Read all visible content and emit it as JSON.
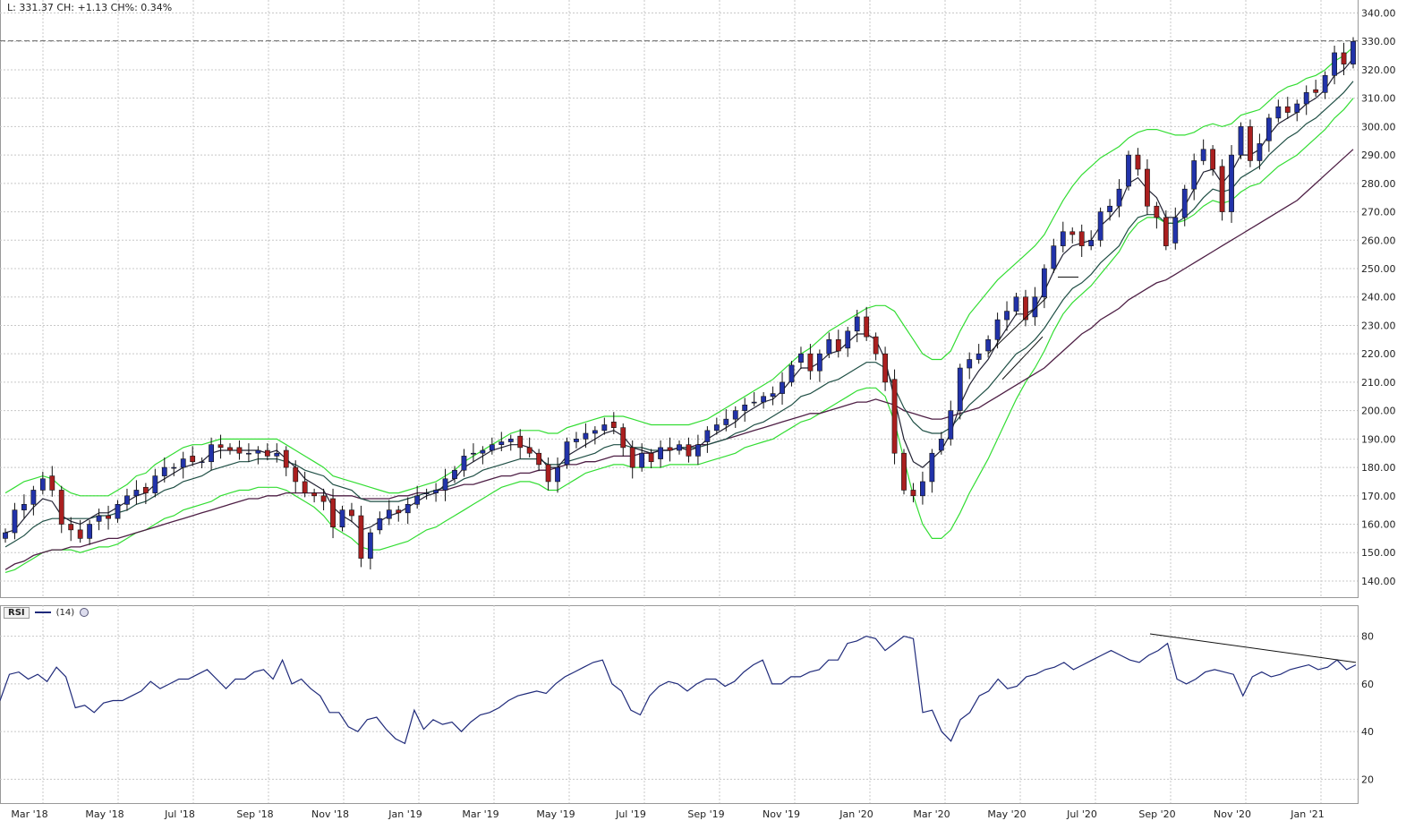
{
  "status": "L: 331.37 CH: +1.13 CH%: 0.34%",
  "rsi_label": "RSI",
  "rsi_period": "(14)",
  "chart_data": [
    {
      "type": "candlestick",
      "yticks": [
        "340.00",
        "330.00",
        "320.00",
        "310.00",
        "300.00",
        "290.00",
        "280.00",
        "270.00",
        "260.00",
        "250.00",
        "240.00",
        "230.00",
        "220.00",
        "210.00",
        "200.00",
        "190.00",
        "180.00",
        "170.00",
        "160.00",
        "150.00",
        "140.00"
      ],
      "ylim": [
        134,
        343
      ],
      "reference_line": 330.2,
      "xticks": [
        "Mar '18",
        "May '18",
        "Jul '18",
        "Sep '18",
        "Nov '18",
        "Jan '19",
        "Mar '19",
        "May '19",
        "Jul '19",
        "Sep '19",
        "Nov '19",
        "Jan '20",
        "Mar '20",
        "May '20",
        "Jul '20",
        "Sep '20",
        "Nov '20",
        "Jan '21"
      ],
      "closes": [
        157,
        165,
        167,
        172,
        176,
        172,
        160,
        158,
        155,
        160,
        163,
        162,
        167,
        170,
        172,
        171,
        177,
        180,
        180,
        183,
        182,
        182,
        188,
        187,
        186,
        185,
        185,
        186,
        184,
        185,
        180,
        175,
        171,
        170,
        168,
        159,
        165,
        163,
        148,
        157,
        162,
        165,
        164,
        167,
        170,
        171,
        172,
        176,
        179,
        184,
        185,
        186,
        188,
        189,
        190,
        187,
        185,
        181,
        175,
        180,
        189,
        190,
        192,
        193,
        195,
        194,
        187,
        180,
        185,
        182,
        187,
        186,
        188,
        184,
        188,
        193,
        195,
        197,
        200,
        202,
        203,
        205,
        206,
        210,
        216,
        220,
        214,
        220,
        225,
        221,
        228,
        233,
        226,
        220,
        210,
        185,
        172,
        170,
        175,
        185,
        190,
        200,
        215,
        218,
        220,
        225,
        232,
        235,
        240,
        232,
        240,
        250,
        258,
        263,
        262,
        258,
        260,
        270,
        272,
        278,
        290,
        285,
        272,
        268,
        258,
        268,
        278,
        288,
        292,
        285,
        270,
        290,
        300,
        288,
        294,
        303,
        307,
        305,
        308,
        312,
        312,
        318,
        326,
        322,
        330
      ],
      "ema_short": [
        157,
        158,
        162,
        166,
        169,
        168,
        163,
        161,
        160,
        162,
        164,
        164,
        166,
        168,
        170,
        171,
        174,
        176,
        178,
        180,
        181,
        182,
        185,
        186,
        186,
        186,
        186,
        186,
        185,
        186,
        183,
        180,
        176,
        174,
        172,
        166,
        163,
        161,
        158,
        159,
        161,
        163,
        164,
        166,
        168,
        170,
        171,
        174,
        176,
        180,
        182,
        184,
        186,
        187,
        188,
        188,
        187,
        184,
        180,
        180,
        184,
        186,
        188,
        190,
        192,
        193,
        191,
        187,
        186,
        185,
        186,
        186,
        187,
        186,
        187,
        190,
        192,
        194,
        196,
        199,
        201,
        203,
        204,
        207,
        211,
        215,
        215,
        217,
        220,
        221,
        224,
        227,
        227,
        225,
        218,
        204,
        190,
        182,
        180,
        183,
        186,
        192,
        202,
        209,
        214,
        218,
        224,
        229,
        234,
        234,
        236,
        242,
        249,
        255,
        258,
        259,
        260,
        265,
        268,
        272,
        280,
        282,
        278,
        275,
        268,
        268,
        272,
        278,
        284,
        285,
        280,
        284,
        290,
        290,
        292,
        297,
        301,
        303,
        305,
        308,
        310,
        313,
        318,
        320,
        324
      ],
      "ema_mid": [
        152,
        154,
        156,
        159,
        161,
        162,
        162,
        162,
        162,
        162,
        163,
        163,
        164,
        165,
        167,
        168,
        170,
        172,
        173,
        175,
        176,
        177,
        179,
        180,
        181,
        182,
        182,
        183,
        183,
        183,
        182,
        181,
        179,
        178,
        177,
        174,
        173,
        172,
        169,
        168,
        168,
        168,
        168,
        169,
        170,
        171,
        172,
        173,
        174,
        176,
        177,
        179,
        180,
        181,
        182,
        183,
        183,
        183,
        181,
        181,
        182,
        183,
        184,
        185,
        187,
        188,
        188,
        187,
        187,
        186,
        186,
        186,
        187,
        187,
        187,
        188,
        189,
        190,
        192,
        193,
        195,
        196,
        198,
        200,
        202,
        205,
        206,
        208,
        210,
        211,
        213,
        215,
        217,
        217,
        215,
        208,
        201,
        196,
        193,
        192,
        192,
        194,
        198,
        202,
        205,
        208,
        212,
        216,
        220,
        222,
        225,
        229,
        234,
        239,
        243,
        245,
        248,
        252,
        255,
        258,
        264,
        268,
        269,
        269,
        266,
        266,
        268,
        271,
        275,
        278,
        277,
        278,
        282,
        284,
        286,
        290,
        293,
        296,
        298,
        301,
        303,
        306,
        309,
        312,
        316
      ],
      "sma_long": [
        144,
        146,
        147,
        149,
        150,
        151,
        151,
        152,
        152,
        153,
        154,
        155,
        155,
        156,
        157,
        158,
        159,
        160,
        161,
        162,
        163,
        164,
        165,
        166,
        167,
        168,
        169,
        169,
        170,
        170,
        171,
        171,
        171,
        171,
        171,
        170,
        170,
        170,
        169,
        169,
        169,
        169,
        170,
        170,
        171,
        171,
        172,
        172,
        173,
        174,
        174,
        175,
        176,
        177,
        177,
        178,
        178,
        179,
        179,
        180,
        181,
        181,
        182,
        182,
        183,
        184,
        184,
        184,
        185,
        185,
        186,
        186,
        187,
        187,
        188,
        188,
        189,
        190,
        191,
        192,
        193,
        194,
        195,
        196,
        197,
        198,
        199,
        199,
        200,
        201,
        202,
        203,
        203,
        204,
        203,
        202,
        200,
        199,
        198,
        197,
        197,
        198,
        199,
        200,
        201,
        203,
        205,
        207,
        209,
        211,
        213,
        215,
        218,
        221,
        224,
        227,
        229,
        232,
        234,
        236,
        239,
        241,
        243,
        245,
        246,
        248,
        250,
        252,
        254,
        256,
        258,
        260,
        262,
        264,
        266,
        268,
        270,
        272,
        274,
        277,
        280,
        283,
        286,
        289,
        292
      ],
      "bb_upper": [
        171,
        173,
        175,
        176,
        177,
        176,
        173,
        171,
        170,
        170,
        170,
        170,
        172,
        174,
        177,
        178,
        181,
        183,
        185,
        187,
        188,
        188,
        189,
        190,
        190,
        190,
        190,
        190,
        190,
        190,
        188,
        186,
        184,
        182,
        180,
        177,
        176,
        175,
        174,
        173,
        172,
        171,
        171,
        172,
        173,
        174,
        175,
        177,
        179,
        182,
        184,
        186,
        188,
        190,
        192,
        193,
        193,
        193,
        192,
        192,
        194,
        195,
        196,
        197,
        198,
        198,
        198,
        197,
        196,
        195,
        195,
        195,
        195,
        195,
        196,
        197,
        199,
        201,
        203,
        205,
        207,
        209,
        211,
        214,
        217,
        220,
        222,
        225,
        228,
        230,
        232,
        234,
        236,
        237,
        237,
        235,
        230,
        225,
        220,
        218,
        218,
        221,
        228,
        234,
        238,
        242,
        246,
        249,
        252,
        255,
        258,
        262,
        268,
        274,
        279,
        283,
        286,
        289,
        291,
        293,
        296,
        298,
        299,
        299,
        298,
        297,
        297,
        298,
        300,
        301,
        300,
        301,
        304,
        305,
        306,
        309,
        312,
        314,
        315,
        317,
        318,
        320,
        323,
        325,
        328
      ],
      "bb_lower": [
        143,
        144,
        146,
        148,
        150,
        151,
        151,
        151,
        150,
        151,
        152,
        152,
        153,
        155,
        157,
        158,
        160,
        162,
        163,
        165,
        166,
        167,
        168,
        170,
        171,
        172,
        172,
        173,
        173,
        173,
        172,
        170,
        168,
        166,
        163,
        159,
        157,
        155,
        152,
        151,
        151,
        152,
        153,
        154,
        156,
        158,
        159,
        161,
        163,
        165,
        167,
        169,
        171,
        173,
        174,
        175,
        175,
        174,
        172,
        172,
        174,
        176,
        178,
        179,
        180,
        181,
        181,
        180,
        180,
        180,
        180,
        181,
        181,
        181,
        181,
        182,
        183,
        184,
        185,
        187,
        188,
        189,
        190,
        192,
        194,
        196,
        197,
        199,
        201,
        203,
        205,
        207,
        208,
        208,
        205,
        196,
        183,
        170,
        160,
        155,
        155,
        158,
        164,
        171,
        177,
        183,
        190,
        197,
        204,
        210,
        215,
        221,
        228,
        234,
        238,
        241,
        244,
        248,
        252,
        256,
        262,
        266,
        268,
        268,
        266,
        266,
        267,
        269,
        272,
        274,
        273,
        274,
        277,
        279,
        280,
        283,
        286,
        288,
        290,
        293,
        296,
        299,
        303,
        306,
        310
      ],
      "upper_trendline": [
        [
          1283.0,
          1
        ],
        [
          1298.5,
          3
        ]
      ],
      "lower_trendline": [
        [
          1261.5,
          3
        ],
        [
          1282.5,
          5
        ]
      ],
      "colors": {
        "up_candle": "#2233aa",
        "down_candle": "#aa1f1f",
        "ema_short": "#222233",
        "ema_mid": "#1f4f45",
        "sma_long": "#4e1f45",
        "bollinger": "#33dd33",
        "reference": "#666666"
      }
    },
    {
      "type": "line",
      "name": "RSI (14)",
      "ylim": [
        10,
        93
      ],
      "yticks": [
        "80",
        "60",
        "40",
        "20"
      ],
      "values": [
        53,
        64,
        65,
        62,
        64,
        61,
        67,
        63,
        50,
        51,
        48,
        52,
        53,
        53,
        55,
        57,
        61,
        58,
        60,
        62,
        62,
        64,
        66,
        62,
        58,
        62,
        62,
        65,
        66,
        62,
        70,
        60,
        62,
        58,
        55,
        48,
        48,
        42,
        40,
        45,
        46,
        41,
        37,
        35,
        49,
        41,
        45,
        43,
        44,
        40,
        44,
        47,
        48,
        50,
        53,
        55,
        56,
        57,
        56,
        60,
        63,
        65,
        67,
        69,
        70,
        60,
        57,
        49,
        47,
        55,
        59,
        61,
        60,
        57,
        60,
        62,
        62,
        59,
        61,
        65,
        68,
        70,
        60,
        60,
        63,
        63,
        65,
        66,
        70,
        70,
        77,
        78,
        80,
        79,
        74,
        77,
        80,
        79,
        48,
        49,
        40,
        36,
        45,
        48,
        55,
        57,
        62,
        58,
        59,
        63,
        64,
        66,
        67,
        69,
        66,
        68,
        70,
        72,
        74,
        72,
        70,
        69,
        72,
        74,
        77,
        62,
        60,
        62,
        65,
        66,
        65,
        64,
        55,
        63,
        65,
        63,
        64,
        66,
        67,
        68,
        66,
        67,
        70,
        66,
        68
      ],
      "trendline": [
        [
          1285,
          81
        ],
        [
          1515,
          69
        ]
      ],
      "color": "#1f2a7a"
    }
  ]
}
